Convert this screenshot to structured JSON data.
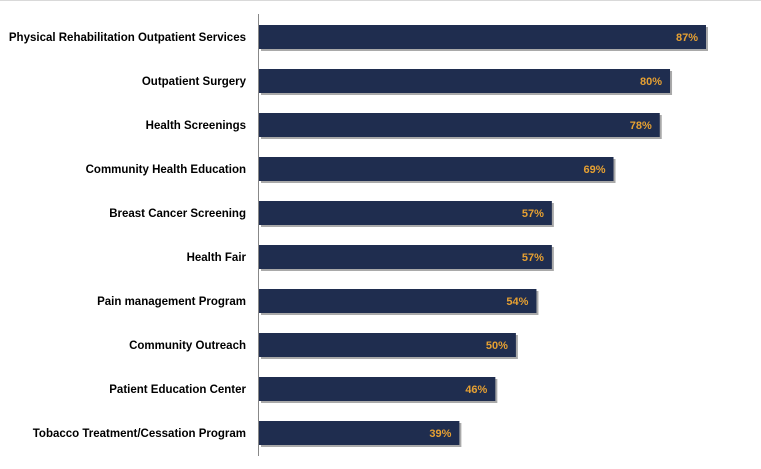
{
  "chart_data": {
    "type": "bar",
    "orientation": "horizontal",
    "categories": [
      "Physical Rehabilitation Outpatient Services",
      "Outpatient Surgery",
      "Health Screenings",
      "Community Health Education",
      "Breast Cancer Screening",
      "Health Fair",
      "Pain management Program",
      "Community Outreach",
      "Patient Education Center",
      "Tobacco Treatment/Cessation Program"
    ],
    "values": [
      87,
      80,
      78,
      69,
      57,
      57,
      54,
      50,
      46,
      39
    ],
    "value_labels": [
      "87%",
      "80%",
      "78%",
      "69%",
      "57%",
      "57%",
      "54%",
      "50%",
      "46%",
      "39%"
    ],
    "unit": "%",
    "title": "",
    "xlabel": "",
    "ylabel": "",
    "grid": false,
    "legend": "none",
    "colors": {
      "bar": "#1f2d4f",
      "bar_shadow": "#a9a9a9",
      "value_label": "#e6a032",
      "axis": "#888888",
      "top_grid": "#d9d9d9"
    }
  }
}
